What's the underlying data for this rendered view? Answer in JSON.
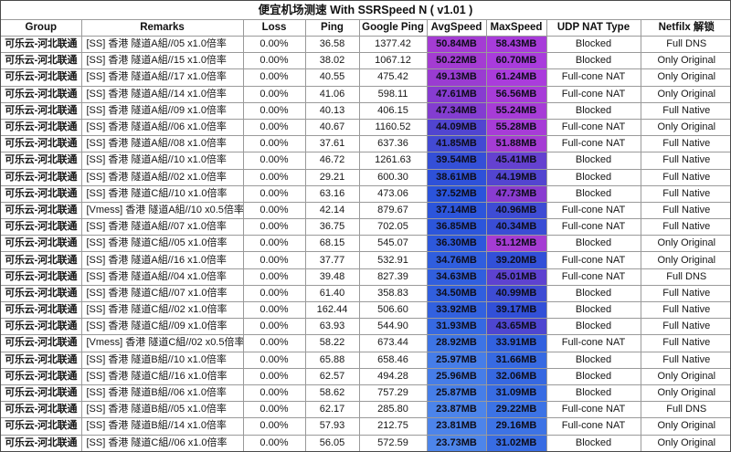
{
  "title": "便宜机场测速 With SSRSpeed N ( v1.01 )",
  "headers": [
    "Group",
    "Remarks",
    "Loss",
    "Ping",
    "Google Ping",
    "AvgSpeed",
    "MaxSpeed",
    "UDP NAT Type",
    "Netfilx 解锁"
  ],
  "colors": {
    "background": "#ffffff",
    "grid_line": "#9a9a9a",
    "speed_text": "#0d0d1a",
    "speed_scale": [
      {
        "v": 23,
        "c": "#4f87eb"
      },
      {
        "v": 30,
        "c": "#3a70e4"
      },
      {
        "v": 38,
        "c": "#2a52da"
      },
      {
        "v": 41,
        "c": "#3e4cd4"
      },
      {
        "v": 44,
        "c": "#5045d0"
      },
      {
        "v": 46,
        "c": "#6c40d0"
      },
      {
        "v": 48,
        "c": "#8e3bd0"
      },
      {
        "v": 50,
        "c": "#a43cd2"
      },
      {
        "v": 62,
        "c": "#aa3cdd"
      }
    ]
  },
  "rows": [
    {
      "group": "可乐云-河北联通",
      "remarks": "[SS] 香港  隧道A組//05 x1.0倍率",
      "loss": "0.00%",
      "ping": "36.58",
      "gping": "1377.42",
      "avg": "50.84MB",
      "max": "58.43MB",
      "udp": "Blocked",
      "nf": "Full DNS"
    },
    {
      "group": "可乐云-河北联通",
      "remarks": "[SS] 香港  隧道A組//15 x1.0倍率",
      "loss": "0.00%",
      "ping": "38.02",
      "gping": "1067.12",
      "avg": "50.22MB",
      "max": "60.70MB",
      "udp": "Blocked",
      "nf": "Only Original"
    },
    {
      "group": "可乐云-河北联通",
      "remarks": "[SS] 香港  隧道A組//17 x1.0倍率",
      "loss": "0.00%",
      "ping": "40.55",
      "gping": "475.42",
      "avg": "49.13MB",
      "max": "61.24MB",
      "udp": "Full-cone NAT",
      "nf": "Only Original"
    },
    {
      "group": "可乐云-河北联通",
      "remarks": "[SS] 香港  隧道A組//14 x1.0倍率",
      "loss": "0.00%",
      "ping": "41.06",
      "gping": "598.11",
      "avg": "47.61MB",
      "max": "56.56MB",
      "udp": "Full-cone NAT",
      "nf": "Only Original"
    },
    {
      "group": "可乐云-河北联通",
      "remarks": "[SS] 香港  隧道A組//09 x1.0倍率",
      "loss": "0.00%",
      "ping": "40.13",
      "gping": "406.15",
      "avg": "47.34MB",
      "max": "55.24MB",
      "udp": "Blocked",
      "nf": "Full Native"
    },
    {
      "group": "可乐云-河北联通",
      "remarks": "[SS] 香港  隧道A組//06 x1.0倍率",
      "loss": "0.00%",
      "ping": "40.67",
      "gping": "1160.52",
      "avg": "44.09MB",
      "max": "55.28MB",
      "udp": "Full-cone NAT",
      "nf": "Only Original"
    },
    {
      "group": "可乐云-河北联通",
      "remarks": "[SS] 香港  隧道A組//08 x1.0倍率",
      "loss": "0.00%",
      "ping": "37.61",
      "gping": "637.36",
      "avg": "41.85MB",
      "max": "51.88MB",
      "udp": "Full-cone NAT",
      "nf": "Full Native"
    },
    {
      "group": "可乐云-河北联通",
      "remarks": "[SS] 香港  隧道A組//10 x1.0倍率",
      "loss": "0.00%",
      "ping": "46.72",
      "gping": "1261.63",
      "avg": "39.54MB",
      "max": "45.41MB",
      "udp": "Blocked",
      "nf": "Full Native"
    },
    {
      "group": "可乐云-河北联通",
      "remarks": "[SS] 香港  隧道A組//02 x1.0倍率",
      "loss": "0.00%",
      "ping": "29.21",
      "gping": "600.30",
      "avg": "38.61MB",
      "max": "44.19MB",
      "udp": "Blocked",
      "nf": "Full Native"
    },
    {
      "group": "可乐云-河北联通",
      "remarks": "[SS] 香港  隧道C組//10 x1.0倍率",
      "loss": "0.00%",
      "ping": "63.16",
      "gping": "473.06",
      "avg": "37.52MB",
      "max": "47.73MB",
      "udp": "Blocked",
      "nf": "Full Native"
    },
    {
      "group": "可乐云-河北联通",
      "remarks": "[Vmess] 香港  隧道A組//10 x0.5倍率",
      "loss": "0.00%",
      "ping": "42.14",
      "gping": "879.67",
      "avg": "37.14MB",
      "max": "40.96MB",
      "udp": "Full-cone NAT",
      "nf": "Full Native"
    },
    {
      "group": "可乐云-河北联通",
      "remarks": "[SS] 香港  隧道A組//07 x1.0倍率",
      "loss": "0.00%",
      "ping": "36.75",
      "gping": "702.05",
      "avg": "36.85MB",
      "max": "40.34MB",
      "udp": "Full-cone NAT",
      "nf": "Full Native"
    },
    {
      "group": "可乐云-河北联通",
      "remarks": "[SS] 香港  隧道C組//05 x1.0倍率",
      "loss": "0.00%",
      "ping": "68.15",
      "gping": "545.07",
      "avg": "36.30MB",
      "max": "51.12MB",
      "udp": "Blocked",
      "nf": "Only Original"
    },
    {
      "group": "可乐云-河北联通",
      "remarks": "[SS] 香港  隧道A組//16 x1.0倍率",
      "loss": "0.00%",
      "ping": "37.77",
      "gping": "532.91",
      "avg": "34.76MB",
      "max": "39.20MB",
      "udp": "Full-cone NAT",
      "nf": "Only Original"
    },
    {
      "group": "可乐云-河北联通",
      "remarks": "[SS] 香港  隧道A組//04 x1.0倍率",
      "loss": "0.00%",
      "ping": "39.48",
      "gping": "827.39",
      "avg": "34.63MB",
      "max": "45.01MB",
      "udp": "Full-cone NAT",
      "nf": "Full DNS"
    },
    {
      "group": "可乐云-河北联通",
      "remarks": "[SS] 香港  隧道C組//07 x1.0倍率",
      "loss": "0.00%",
      "ping": "61.40",
      "gping": "358.83",
      "avg": "34.50MB",
      "max": "40.99MB",
      "udp": "Blocked",
      "nf": "Full Native"
    },
    {
      "group": "可乐云-河北联通",
      "remarks": "[SS] 香港  隧道C組//02 x1.0倍率",
      "loss": "0.00%",
      "ping": "162.44",
      "gping": "506.60",
      "avg": "33.92MB",
      "max": "39.17MB",
      "udp": "Blocked",
      "nf": "Full Native"
    },
    {
      "group": "可乐云-河北联通",
      "remarks": "[SS] 香港  隧道C組//09 x1.0倍率",
      "loss": "0.00%",
      "ping": "63.93",
      "gping": "544.90",
      "avg": "31.93MB",
      "max": "43.65MB",
      "udp": "Blocked",
      "nf": "Full Native"
    },
    {
      "group": "可乐云-河北联通",
      "remarks": "[Vmess] 香港  隧道C組//02 x0.5倍率",
      "loss": "0.00%",
      "ping": "58.22",
      "gping": "673.44",
      "avg": "28.92MB",
      "max": "33.91MB",
      "udp": "Full-cone NAT",
      "nf": "Full Native"
    },
    {
      "group": "可乐云-河北联通",
      "remarks": "[SS] 香港  隧道B組//10 x1.0倍率",
      "loss": "0.00%",
      "ping": "65.88",
      "gping": "658.46",
      "avg": "25.97MB",
      "max": "31.66MB",
      "udp": "Blocked",
      "nf": "Full Native"
    },
    {
      "group": "可乐云-河北联通",
      "remarks": "[SS] 香港  隧道C組//16 x1.0倍率",
      "loss": "0.00%",
      "ping": "62.57",
      "gping": "494.28",
      "avg": "25.96MB",
      "max": "32.06MB",
      "udp": "Blocked",
      "nf": "Only Original"
    },
    {
      "group": "可乐云-河北联通",
      "remarks": "[SS] 香港  隧道B組//06 x1.0倍率",
      "loss": "0.00%",
      "ping": "58.62",
      "gping": "757.29",
      "avg": "25.87MB",
      "max": "31.09MB",
      "udp": "Blocked",
      "nf": "Only Original"
    },
    {
      "group": "可乐云-河北联通",
      "remarks": "[SS] 香港  隧道B組//05 x1.0倍率",
      "loss": "0.00%",
      "ping": "62.17",
      "gping": "285.80",
      "avg": "23.87MB",
      "max": "29.22MB",
      "udp": "Full-cone NAT",
      "nf": "Full DNS"
    },
    {
      "group": "可乐云-河北联通",
      "remarks": "[SS] 香港  隧道B組//14 x1.0倍率",
      "loss": "0.00%",
      "ping": "57.93",
      "gping": "212.75",
      "avg": "23.81MB",
      "max": "29.16MB",
      "udp": "Full-cone NAT",
      "nf": "Only Original"
    },
    {
      "group": "可乐云-河北联通",
      "remarks": "[SS] 香港  隧道C組//06 x1.0倍率",
      "loss": "0.00%",
      "ping": "56.05",
      "gping": "572.59",
      "avg": "23.73MB",
      "max": "31.02MB",
      "udp": "Blocked",
      "nf": "Only Original"
    }
  ]
}
